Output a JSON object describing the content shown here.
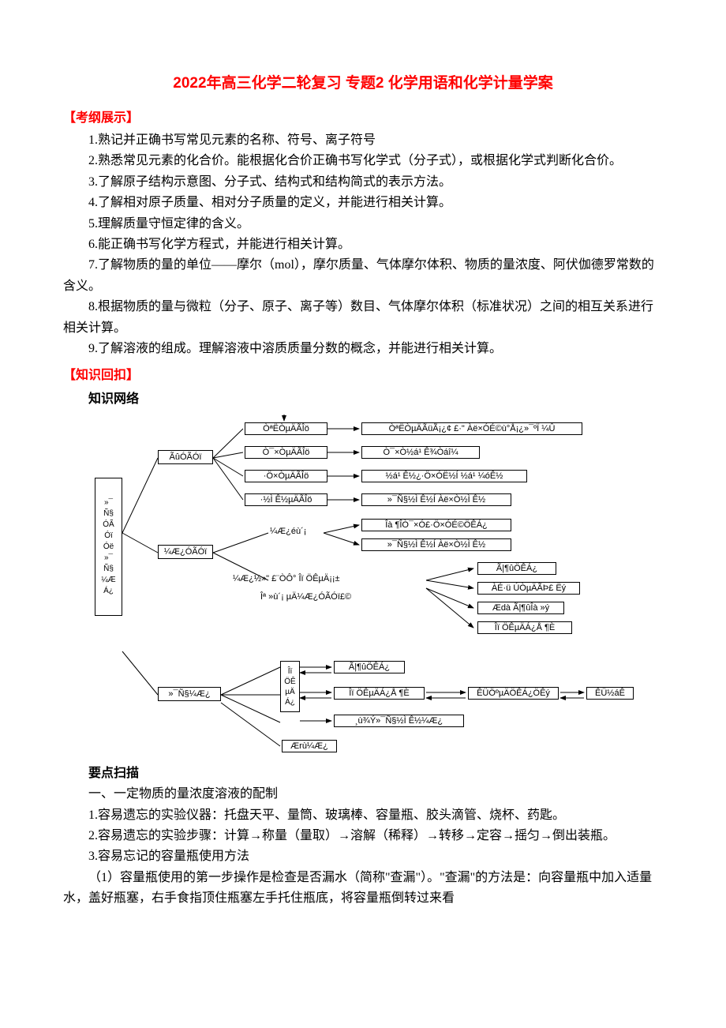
{
  "title": "2022年高三化学二轮复习 专题2 化学用语和化学计量学案",
  "sections": {
    "exam": {
      "header": "【考纲展示】",
      "items": [
        "1.熟记并正确书写常见元素的名称、符号、离子符号",
        "2.熟悉常见元素的化合价。能根据化合价正确书写化学式（分子式），或根据化学式判断化合价。",
        "3.了解原子结构示意图、分子式、结构式和结构简式的表示方法。",
        "4.了解相对原子质量、相对分子质量的定义，并能进行相关计算。",
        "5.理解质量守恒定律的含义。",
        "6.能正确书写化学方程式，并能进行相关计算。",
        "7.了解物质的量的单位——摩尔（mol），摩尔质量、气体摩尔体积、物质的量浓度、阿伏伽德罗常数的含义。",
        "8.根据物质的量与微粒（分子、原子、离子等）数目、气体摩尔体积（标准状况）之间的相互关系进行相关计算。",
        "9.了解溶液的组成。理解溶液中溶质质量分数的概念，并能进行相关计算。"
      ]
    },
    "knowledge": {
      "header": "【知识回扣】",
      "network_label": "知识网络",
      "points_label": "要点扫描",
      "points_intro": "一、一定物质的量浓度溶液的配制",
      "points": [
        "1.容易遗忘的实验仪器：托盘天平、量筒、玻璃棒、容量瓶、胶头滴管、烧杯、药匙。",
        "2.容易遗忘的实验步骤：计算→称量（量取）→溶解（稀释）→转移→定容→摇匀→倒出装瓶。",
        "3.容易忘记的容量瓶使用方法",
        "（1）容量瓶使用的第一步操作是检查是否漏水（简称\"查漏\"）。\"查漏\"的方法是：向容量瓶中加入适量水，盖好瓶塞，右手食指顶住瓶塞左手托住瓶底，将容量瓶倒转过来看"
      ]
    }
  },
  "diagram": {
    "root": "»¯\nÑ§\nÓÃ\nÓï\nÓë\n»¯\nÑ§\n¼Æ\nÁ¿",
    "level2": {
      "a": "ÃûÓÃÓï",
      "b": "¼Æ¿ÓÃÓï",
      "c": "»¯Ñ§¼Æ¿"
    },
    "level2_labels": {
      "b1": "¼Æ¿éù´¡",
      "b2": "¼Æ¿½»\" £¨ÒÔ° Îï ÖÊµÄ¡¡±",
      "b3": "Îª »ù´¡ µÄ¼Æ¿ÓÃÓï£©"
    },
    "row1": {
      "left": "ÒªËÒµÄÃÎö",
      "right": "ÒªËÒµÄÃüÃ¡¿¢ £·\" Àë×ÓÉ©ù°Å¡¿»¯ºÏ ¼Û"
    },
    "row2": {
      "left": "Ò¯×ÒµÄÃÎö",
      "right": "Ò¯×Ò½á¹ Ê¾Òáî¼"
    },
    "row3": {
      "left": "·Ö×ÒµÄÃÎö",
      "right": "½á¹ Ê½¿·Ö×ÓË½Í ½á¹ ¼óÊ½"
    },
    "row4": {
      "left": "·½Ì Ê½µÄÃÎö",
      "right": "»¯Ñ§½Ì Ê½Í Àë×Ò½Ì Ê½"
    },
    "row5a": "Îà ¶ÎÒ¯×Ó£·Ö×ÓÉ©ÖÊÁ¿",
    "row5b": "»¯Ñ§½Ì Ê½Í Àë×Ò½Ì Ê½",
    "rightcol": {
      "a": "Ã|¶ûÖÊÁ¿",
      "b": "ÀÉ·ü ÚÒµÄÃÞ£ Ëý",
      "c": "Ædà Ã|¶ûÎà »ý",
      "d": "Îï ÖÊµÄÁ¿Å ¶È"
    },
    "bottom": {
      "n": "Ã|¶ûÖÊÁ¿",
      "center": "Îï\nÖÊ\nµÄ\nÁ¿",
      "v": "Îï ÖÊµÄÁ¿Å ¶È",
      "r1": "ÊÜÖºµÄÖÊÁ¿ÖÊý",
      "r2": "ÊÜ½áÊ",
      "b": "¸ù¾Ý»¯Ñ§½Ì Ê½¼Æ¿",
      "left": "Ærù¼Æ¿"
    },
    "colors": {
      "border": "#000000",
      "text": "#000000",
      "bg": "#ffffff"
    }
  }
}
